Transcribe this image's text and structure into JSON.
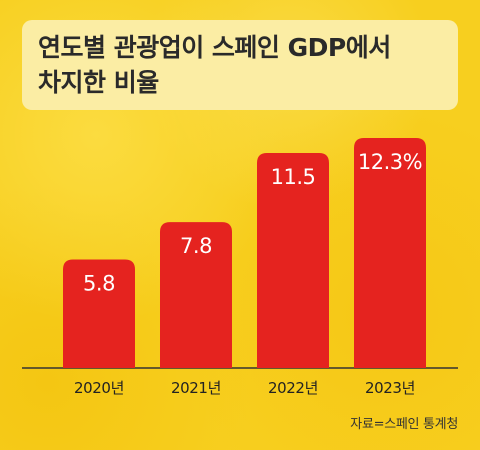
{
  "title": {
    "line1": "연도별 관광업이 스페인 GDP에서",
    "line2": "차지한 비율"
  },
  "source": "자료=스페인 통계청",
  "colors": {
    "background": "#f7cf1f",
    "title_box": "#fbeda4",
    "bar": "#e5231f",
    "bar_label": "#ffffff",
    "axis": "#333333"
  },
  "chart_data": {
    "type": "bar",
    "categories": [
      "2020년",
      "2021년",
      "2022년",
      "2023년"
    ],
    "values": [
      5.8,
      7.8,
      11.5,
      12.3
    ],
    "value_labels": [
      "5.8",
      "7.8",
      "11.5",
      "12.3%"
    ],
    "unit": "%",
    "ylim": [
      0,
      12.3
    ],
    "grid": false,
    "legend": "none"
  }
}
